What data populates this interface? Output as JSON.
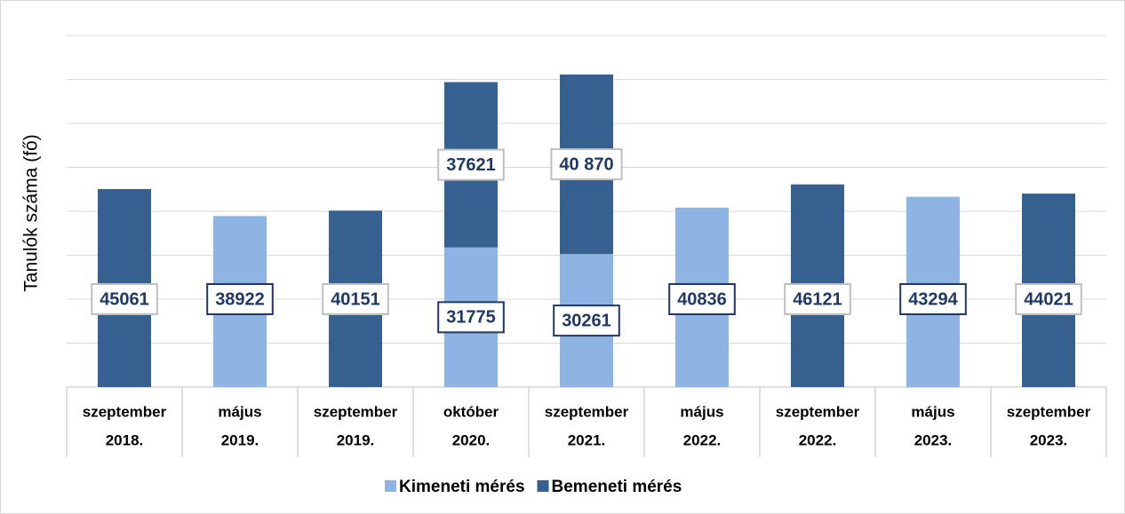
{
  "chart_data": {
    "type": "bar",
    "stacked": true,
    "ylabel": "Tanulók száma (fő)",
    "categories": [
      [
        "szeptember",
        "2018."
      ],
      [
        "május",
        "2019."
      ],
      [
        "szeptember",
        "2019."
      ],
      [
        "október",
        "2020."
      ],
      [
        "szeptember",
        "2021."
      ],
      [
        "május",
        "2022."
      ],
      [
        "szeptember",
        "2022."
      ],
      [
        "május",
        "2023."
      ],
      [
        "szeptember",
        "2023."
      ]
    ],
    "series": [
      {
        "name": "Kimeneti mérés",
        "color": "#8eb4e3",
        "values": [
          null,
          38922,
          null,
          31775,
          30261,
          40836,
          null,
          43294,
          null
        ]
      },
      {
        "name": "Bemeneti mérés",
        "color": "#35608f",
        "values": [
          45061,
          null,
          40151,
          37621,
          40870,
          null,
          46121,
          null,
          44021
        ],
        "value_labels": [
          "45061",
          null,
          "40151",
          "37621",
          "40 870",
          null,
          "46121",
          null,
          "44021"
        ]
      }
    ],
    "ylim": [
      0,
      80000
    ],
    "yticks": [
      0,
      10000,
      20000,
      30000,
      40000,
      50000,
      60000,
      70000,
      80000
    ],
    "grid": true,
    "legend": "bottom"
  }
}
